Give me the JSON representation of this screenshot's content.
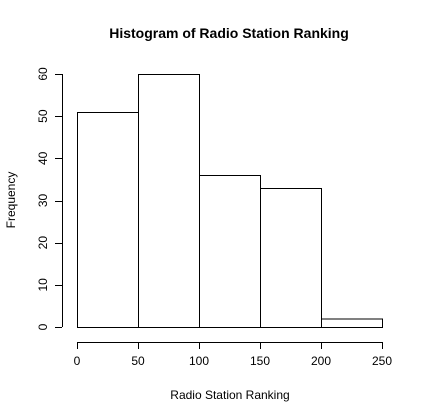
{
  "chart_data": {
    "type": "bar",
    "subtype": "histogram",
    "title": "Histogram of Radio Station Ranking",
    "xlabel": "Radio Station Ranking",
    "ylabel": "Frequency",
    "bins": [
      {
        "from": 0,
        "to": 50,
        "value": 51
      },
      {
        "from": 50,
        "to": 100,
        "value": 60
      },
      {
        "from": 100,
        "to": 150,
        "value": 36
      },
      {
        "from": 150,
        "to": 200,
        "value": 33
      },
      {
        "from": 200,
        "to": 250,
        "value": 2
      }
    ],
    "xlim": [
      0,
      250
    ],
    "ylim": [
      0,
      60
    ],
    "x_ticks": [
      0,
      50,
      100,
      150,
      200,
      250
    ],
    "y_ticks": [
      0,
      10,
      20,
      30,
      40,
      50,
      60
    ],
    "grid": false,
    "legend": "none",
    "colors": {
      "bar_fill": "#ffffff",
      "bar_stroke": "#000000",
      "background": "#ffffff"
    }
  }
}
